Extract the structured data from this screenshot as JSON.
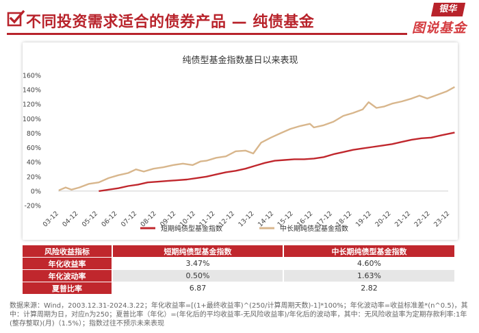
{
  "header": {
    "title": "不同投资需求适合的债券产品 — 纯债基金",
    "logo_top": "银华",
    "logo_bottom": "图说基金",
    "check_color": "#b8232b"
  },
  "chart_data": {
    "type": "line",
    "title": "纯债型基金指数基日以来表现",
    "xlabel": "",
    "ylabel": "",
    "ylim": [
      -20,
      160
    ],
    "yticks": [
      "-20%",
      "0%",
      "20%",
      "40%",
      "60%",
      "80%",
      "100%",
      "120%",
      "140%",
      "160%"
    ],
    "x_ticks": [
      "03-12",
      "04-12",
      "05-12",
      "06-12",
      "07-12",
      "08-12",
      "09-12",
      "10-12",
      "11-12",
      "12-12",
      "13-12",
      "14-12",
      "15-12",
      "16-12",
      "17-12",
      "18-12",
      "19-12",
      "20-12",
      "21-12",
      "22-12",
      "23-12"
    ],
    "xlim": [
      2003.92,
      2024.22
    ],
    "grid": false,
    "legend_position": "bottom",
    "series": [
      {
        "name": "短期纯债型基金指数",
        "color": "#c0272d",
        "x": [
          2006.0,
          2006.5,
          2007.0,
          2007.5,
          2008.0,
          2008.5,
          2009.0,
          2009.5,
          2010.0,
          2010.5,
          2011.0,
          2011.5,
          2012.0,
          2012.5,
          2013.0,
          2013.5,
          2014.0,
          2014.5,
          2015.0,
          2015.5,
          2016.0,
          2016.5,
          2017.0,
          2017.5,
          2018.0,
          2018.5,
          2019.0,
          2019.5,
          2020.0,
          2020.5,
          2021.0,
          2021.5,
          2022.0,
          2022.5,
          2023.0,
          2023.5,
          2024.2
        ],
        "values": [
          0,
          2,
          4,
          7,
          9,
          12,
          13,
          14,
          15,
          16,
          18,
          20,
          23,
          26,
          28,
          31,
          35,
          39,
          42,
          43,
          44,
          44,
          45,
          47,
          51,
          54,
          57,
          59,
          61,
          63,
          65,
          68,
          71,
          73,
          74,
          77,
          81
        ]
      },
      {
        "name": "中长期纯债型基金指数",
        "color": "#d8b68c",
        "x": [
          2003.95,
          2004.3,
          2004.6,
          2005.0,
          2005.5,
          2006.0,
          2006.5,
          2007.0,
          2007.5,
          2007.9,
          2008.3,
          2008.8,
          2009.3,
          2009.8,
          2010.3,
          2010.8,
          2011.2,
          2011.5,
          2012.0,
          2012.5,
          2013.0,
          2013.5,
          2013.9,
          2014.3,
          2014.8,
          2015.3,
          2015.8,
          2016.3,
          2016.8,
          2017.0,
          2017.5,
          2018.0,
          2018.5,
          2019.0,
          2019.5,
          2019.8,
          2020.2,
          2020.6,
          2021.0,
          2021.5,
          2022.0,
          2022.4,
          2022.8,
          2023.3,
          2023.8,
          2024.2
        ],
        "values": [
          1,
          5,
          2,
          5,
          10,
          12,
          18,
          22,
          25,
          30,
          27,
          31,
          33,
          36,
          38,
          36,
          41,
          42,
          46,
          48,
          55,
          56,
          52,
          67,
          74,
          80,
          86,
          90,
          93,
          88,
          91,
          96,
          104,
          108,
          113,
          123,
          115,
          117,
          121,
          124,
          128,
          132,
          128,
          133,
          138,
          144
        ]
      }
    ]
  },
  "table": {
    "headers": [
      "风险收益指标",
      "短期纯债型基金指数",
      "中长期纯债型基金指数"
    ],
    "rows": [
      {
        "label": "年化收益率",
        "short": "3.47%",
        "long": "4.60%"
      },
      {
        "label": "年化波动率",
        "short": "0.50%",
        "long": "1.63%"
      },
      {
        "label": "夏普比率",
        "short": "6.87",
        "long": "2.82"
      }
    ]
  },
  "footnote": "数据来源：Wind，2003.12.31-2024.3.22；年化收益率=[(1+最终收益率)^(250/计算周期天数)-1]*100%；年化波动率=收益标准差*(n^0.5)，其中：计算周期为日，对应n为250；夏普比率（年化）=(年化后的平均收益率-无风险收益率)/年化后的波动率，其中：无风险收益率为定期存款利率:1年(整存整取)(月)（1.5%）；指数过往不预示未来表现"
}
